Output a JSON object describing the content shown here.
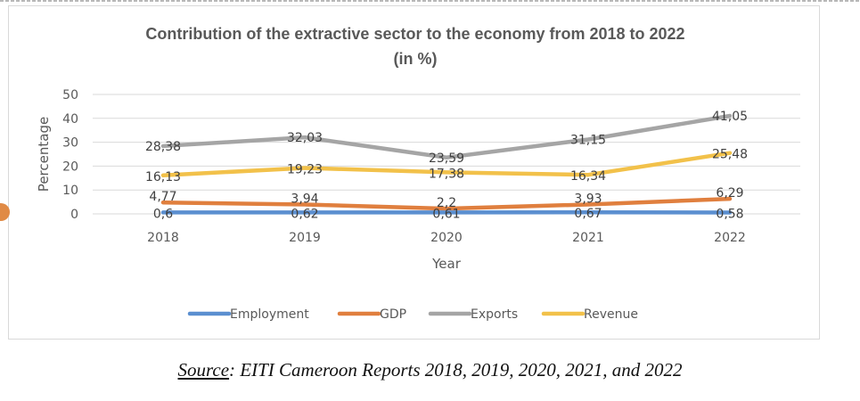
{
  "chart_data": {
    "type": "line",
    "title": "Contribution of the extractive sector to the economy from 2018 to 2022",
    "subtitle": "(in %)",
    "xlabel": "Year",
    "ylabel": "Percentage",
    "categories": [
      "2018",
      "2019",
      "2020",
      "2021",
      "2022"
    ],
    "ylim": [
      0,
      50
    ],
    "yticks": [
      0,
      10,
      20,
      30,
      40,
      50
    ],
    "grid": true,
    "legend_position": "bottom",
    "series": [
      {
        "name": "Employment",
        "color": "#5b8fd0",
        "values": [
          0.6,
          0.62,
          0.61,
          0.67,
          0.58
        ],
        "labels": [
          "0,6",
          "0,62",
          "0,61",
          "0,67",
          "0,58"
        ]
      },
      {
        "name": "GDP",
        "color": "#e07f3e",
        "values": [
          4.77,
          3.94,
          2.2,
          3.93,
          6.29
        ],
        "labels": [
          "4,77",
          "3,94",
          "2,2",
          "3,93",
          "6,29"
        ]
      },
      {
        "name": "Exports",
        "color": "#a5a5a5",
        "values": [
          28.38,
          32.03,
          23.59,
          31.15,
          41.05
        ],
        "labels": [
          "28,38",
          "32,03",
          "23,59",
          "31,15",
          "41,05"
        ]
      },
      {
        "name": "Revenue",
        "color": "#f2c14a",
        "values": [
          16.13,
          19.23,
          17.38,
          16.34,
          25.48
        ],
        "labels": [
          "16,13",
          "19,23",
          "17,38",
          "16,34",
          "25,48"
        ]
      }
    ]
  },
  "source": {
    "prefix": "Source",
    "text": ": EITI Cameroon Reports 2018, 2019, 2020, 2021, and 2022"
  }
}
